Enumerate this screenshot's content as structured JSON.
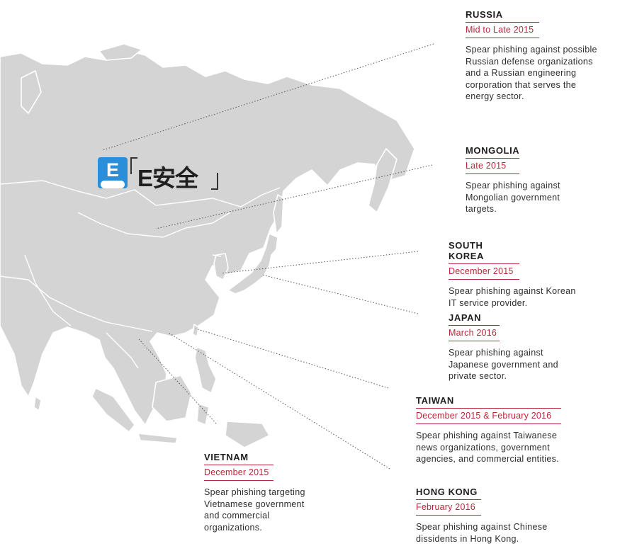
{
  "map": {
    "land_color": "#d4d4d4",
    "leader_color": "#555555",
    "accent_color": "#b8283a"
  },
  "logo": {
    "badge_letter": "E",
    "text": "E安全"
  },
  "callouts": [
    {
      "country": "RUSSIA",
      "date": "Mid to Late 2015",
      "desc": "Spear phishing against possible Russian defense organizations and a Russian engineering corporation that serves the energy sector."
    },
    {
      "country": "MONGOLIA",
      "date": "Late 2015",
      "desc": "Spear phishing against Mongolian government targets."
    },
    {
      "country": "SOUTH KOREA",
      "date": "December 2015",
      "desc": "Spear phishing against Korean IT service provider."
    },
    {
      "country": "JAPAN",
      "date": "March 2016",
      "desc": "Spear phishing against Japanese government and private sector."
    },
    {
      "country": "TAIWAN",
      "date": "December 2015 & February 2016",
      "desc": "Spear phishing against Taiwanese news organizations, government agencies, and commercial entities."
    },
    {
      "country": "VIETNAM",
      "date": "December 2015",
      "desc": "Spear phishing targeting Vietnamese government and commercial organizations."
    },
    {
      "country": "HONG KONG",
      "date": "February 2016",
      "desc": "Spear phishing against Chinese dissidents in Hong Kong."
    }
  ]
}
